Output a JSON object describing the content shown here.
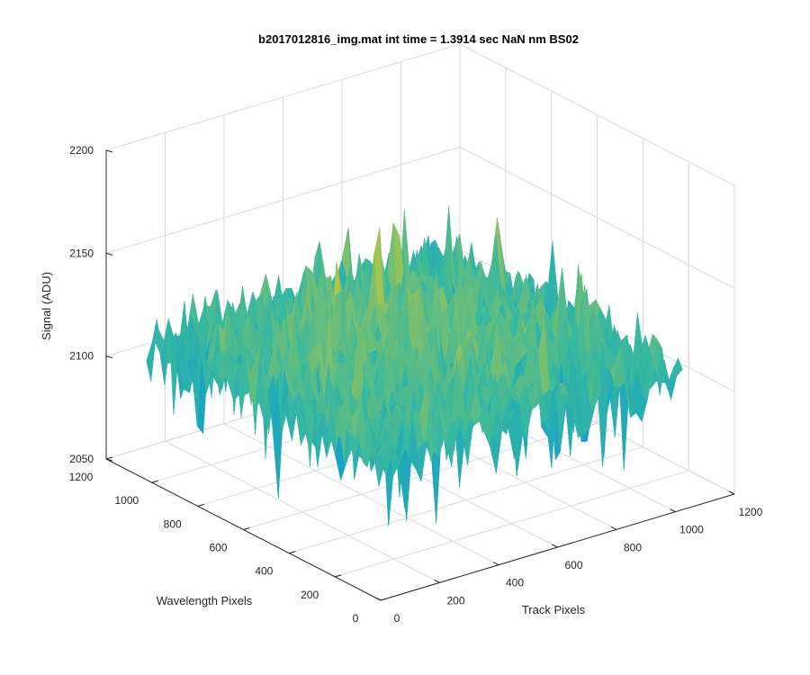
{
  "chart_data": {
    "type": "surface",
    "title": "b2017012816_img.mat int time = 1.3914 sec  NaN nm BS02",
    "xlabel": "Track Pixels",
    "ylabel": "Wavelength Pixels",
    "zlabel": "Signal (ADU)",
    "xlim": [
      0,
      1200
    ],
    "ylim": [
      0,
      1200
    ],
    "zlim": [
      2050,
      2200
    ],
    "xticks": [
      0,
      200,
      400,
      600,
      800,
      1000,
      1200
    ],
    "yticks": [
      0,
      200,
      400,
      600,
      800,
      1000,
      1200
    ],
    "zticks": [
      2050,
      2100,
      2150,
      2200
    ],
    "grid": true,
    "colormap": "parula",
    "data_extent": {
      "x": [
        0,
        1024
      ],
      "y": [
        0,
        1024
      ]
    },
    "signal_summary": {
      "min_approx": 2060,
      "mean_approx": 2120,
      "max_approx": 2172
    },
    "colors": {
      "low": "#0d9ad4",
      "mid": "#3fb8a4",
      "high": "#e6c83a"
    }
  }
}
